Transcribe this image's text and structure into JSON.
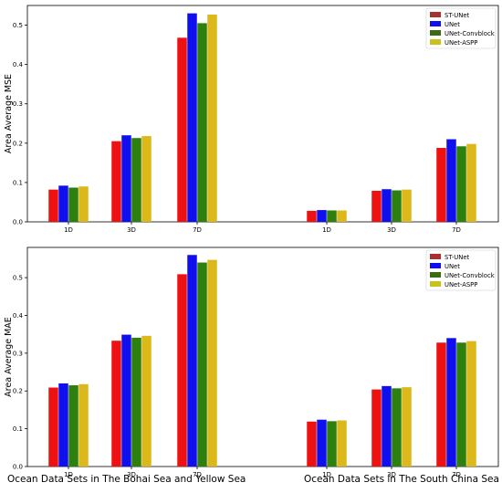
{
  "colors": {
    "ST-UNet": "#ee1111",
    "UNet": "#1010ee",
    "UNet-Convblock": "#2d7f0e",
    "UNet-ASPP": "#dcb81a"
  },
  "legend_swatch_colors": [
    "#a83030",
    "#1010ee",
    "#3a6a12",
    "#c8c21a"
  ],
  "captions": {
    "left": "Ocean Data Sets in The Bohai Sea  and Yellow Sea",
    "right": "Ocean Data Sets in The South China Sea"
  },
  "chart_data": [
    {
      "type": "bar",
      "title": "",
      "xlabel": "",
      "ylabel": "Area Average MSE",
      "ylim": [
        0,
        0.55
      ],
      "yticks": [
        "0.0",
        "0.1",
        "0.2",
        "0.3",
        "0.4",
        "0.5"
      ],
      "categories": [
        "1D",
        "3D",
        "7D",
        "1D",
        "3D",
        "7D"
      ],
      "groups": [
        "Bohai Sea and Yellow Sea",
        "South China Sea"
      ],
      "legend_position": "top-right",
      "series": [
        {
          "name": "ST-UNet",
          "values": [
            0.082,
            0.205,
            0.468,
            0.028,
            0.079,
            0.188
          ]
        },
        {
          "name": "UNet",
          "values": [
            0.092,
            0.22,
            0.53,
            0.03,
            0.083,
            0.21
          ]
        },
        {
          "name": "UNet-Convblock",
          "values": [
            0.087,
            0.213,
            0.505,
            0.029,
            0.08,
            0.192
          ]
        },
        {
          "name": "UNet-ASPP",
          "values": [
            0.09,
            0.218,
            0.527,
            0.029,
            0.082,
            0.198
          ]
        }
      ]
    },
    {
      "type": "bar",
      "title": "",
      "xlabel": "",
      "ylabel": "Area Average MAE",
      "ylim": [
        0,
        0.58
      ],
      "yticks": [
        "0.0",
        "0.1",
        "0.2",
        "0.3",
        "0.4",
        "0.5"
      ],
      "categories": [
        "1D",
        "3D",
        "7D",
        "1D",
        "3D",
        "7D"
      ],
      "groups": [
        "Bohai Sea and Yellow Sea",
        "South China Sea"
      ],
      "legend_position": "top-right",
      "series": [
        {
          "name": "ST-UNet",
          "values": [
            0.209,
            0.333,
            0.509,
            0.119,
            0.204,
            0.328
          ]
        },
        {
          "name": "UNet",
          "values": [
            0.22,
            0.349,
            0.56,
            0.124,
            0.213,
            0.34
          ]
        },
        {
          "name": "UNet-Convblock",
          "values": [
            0.215,
            0.341,
            0.54,
            0.12,
            0.207,
            0.328
          ]
        },
        {
          "name": "UNet-ASPP",
          "values": [
            0.218,
            0.346,
            0.547,
            0.122,
            0.21,
            0.332
          ]
        }
      ]
    }
  ]
}
